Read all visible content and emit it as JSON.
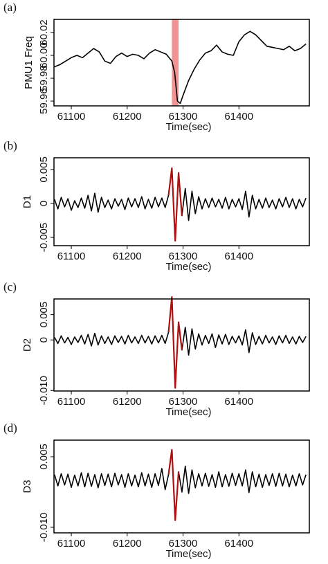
{
  "chart_data": [
    {
      "type": "line",
      "panel_label": "(a)",
      "ylabel": "PMU1 Freq",
      "xlabel": "Time(sec)",
      "xlim": [
        61069,
        61526
      ],
      "ylim": [
        59.9558,
        60.0315
      ],
      "xticks": [
        61100,
        61200,
        61300,
        61400
      ],
      "yticks": [
        60.02,
        {
          "value": 60,
          "label": "60.00"
        },
        59.98,
        59.96
      ],
      "highlight": {
        "x": [
          61280,
          61292
        ],
        "color": "#f08080"
      },
      "x": [
        61070,
        61080,
        61090,
        61100,
        61110,
        61120,
        61130,
        61140,
        61150,
        61160,
        61170,
        61180,
        61190,
        61200,
        61210,
        61220,
        61230,
        61240,
        61250,
        61260,
        61270,
        61280,
        61285,
        61290,
        61295,
        61300,
        61310,
        61320,
        61330,
        61340,
        61350,
        61360,
        61370,
        61380,
        61390,
        61400,
        61410,
        61420,
        61430,
        61440,
        61450,
        61460,
        61470,
        61480,
        61490,
        61500,
        61510,
        61520
      ],
      "series": [
        {
          "name": "PMU1 Freq",
          "color": "#000000",
          "values": [
            59.99,
            59.992,
            59.995,
            59.998,
            60.0,
            59.998,
            60.002,
            60.006,
            60.003,
            59.995,
            59.993,
            59.999,
            60.002,
            59.999,
            60.001,
            60.0,
            59.997,
            60.002,
            60.005,
            60.003,
            60.001,
            59.995,
            59.985,
            59.96,
            59.958,
            59.965,
            59.978,
            59.988,
            59.996,
            60.002,
            60.004,
            60.009,
            60.003,
            60.001,
            60.0,
            60.012,
            60.018,
            60.021,
            60.018,
            60.013,
            60.008,
            60.007,
            60.006,
            60.005,
            60.008,
            60.004,
            60.006,
            60.01
          ]
        }
      ]
    },
    {
      "type": "line",
      "panel_label": "(b)",
      "ylabel": "D1",
      "xlabel": "Time(sec)",
      "xlim": [
        61069,
        61526
      ],
      "ylim": [
        -0.00622,
        0.00673
      ],
      "xticks": [
        61100,
        61200,
        61300,
        61400
      ],
      "yticks": [
        0.005,
        0,
        -0.005
      ],
      "x": [
        61070,
        61076,
        61082,
        61088,
        61094,
        61100,
        61106,
        61112,
        61118,
        61124,
        61130,
        61136,
        61142,
        61148,
        61154,
        61160,
        61166,
        61172,
        61178,
        61184,
        61190,
        61196,
        61202,
        61208,
        61214,
        61220,
        61226,
        61232,
        61238,
        61244,
        61250,
        61256,
        61262,
        61268,
        61274,
        61280,
        61286,
        61292,
        61298,
        61304,
        61310,
        61316,
        61322,
        61328,
        61334,
        61340,
        61346,
        61352,
        61358,
        61364,
        61370,
        61376,
        61382,
        61388,
        61394,
        61400,
        61406,
        61412,
        61418,
        61424,
        61430,
        61436,
        61442,
        61448,
        61454,
        61460,
        61466,
        61472,
        61478,
        61484,
        61490,
        61496,
        61502,
        61508,
        61514,
        61520
      ],
      "series": [
        {
          "name": "D1",
          "color": "#000000",
          "values": [
            0.0006,
            -0.0008,
            0.0009,
            -0.0005,
            0.0007,
            -0.001,
            0.0004,
            -0.0006,
            0.0008,
            -0.0007,
            0.0012,
            -0.0011,
            0.0015,
            -0.0013,
            0.0009,
            -0.0006,
            0.0005,
            -0.0008,
            0.0007,
            -0.0004,
            0.0006,
            -0.0009,
            0.0008,
            -0.0005,
            0.0007,
            -0.0006,
            0.001,
            -0.0008,
            0.0006,
            -0.0007,
            0.0009,
            -0.0005,
            0.0008,
            -0.0006,
            0.0012,
            0.0052,
            -0.0055,
            0.0045,
            -0.0018,
            0.0022,
            -0.0025,
            0.0018,
            -0.0015,
            0.001,
            -0.0008,
            0.0007,
            -0.0006,
            0.0008,
            -0.0005,
            0.0006,
            -0.0007,
            0.0009,
            -0.0008,
            0.0006,
            -0.0005,
            0.0007,
            -0.0009,
            0.0018,
            -0.002,
            0.0012,
            -0.0008,
            0.0006,
            -0.0007,
            0.0008,
            -0.0006,
            0.0005,
            -0.0008,
            0.0007,
            -0.0005,
            0.0009,
            -0.0006,
            0.0007,
            -0.0008,
            0.0006,
            -0.0005,
            0.0008
          ]
        },
        {
          "name": "D1 event",
          "color": "#b01010",
          "values": [
            null,
            null,
            null,
            null,
            null,
            null,
            null,
            null,
            null,
            null,
            null,
            null,
            null,
            null,
            null,
            null,
            null,
            null,
            null,
            null,
            null,
            null,
            null,
            null,
            null,
            null,
            null,
            null,
            null,
            null,
            null,
            null,
            null,
            null,
            0.0012,
            0.0052,
            -0.0055,
            0.0045,
            -0.0018,
            null,
            null,
            null,
            null,
            null,
            null,
            null,
            null,
            null,
            null,
            null,
            null,
            null,
            null,
            null,
            null,
            null,
            null,
            null,
            null,
            null,
            null,
            null,
            null,
            null,
            null,
            null,
            null,
            null,
            null,
            null,
            null,
            null,
            null,
            null,
            null,
            null
          ]
        }
      ]
    },
    {
      "type": "line",
      "panel_label": "(c)",
      "ylabel": "D2",
      "xlabel": "Time(sec)",
      "xlim": [
        61069,
        61526
      ],
      "ylim": [
        -0.0101,
        0.0081
      ],
      "xticks": [
        61100,
        61200,
        61300,
        61400
      ],
      "yticks": [
        0.005,
        0,
        {
          "value": -0.01,
          "label": "-0.010"
        }
      ],
      "x": [
        61070,
        61076,
        61082,
        61088,
        61094,
        61100,
        61106,
        61112,
        61118,
        61124,
        61130,
        61136,
        61142,
        61148,
        61154,
        61160,
        61166,
        61172,
        61178,
        61184,
        61190,
        61196,
        61202,
        61208,
        61214,
        61220,
        61226,
        61232,
        61238,
        61244,
        61250,
        61256,
        61262,
        61268,
        61274,
        61280,
        61286,
        61292,
        61298,
        61304,
        61310,
        61316,
        61322,
        61328,
        61334,
        61340,
        61346,
        61352,
        61358,
        61364,
        61370,
        61376,
        61382,
        61388,
        61394,
        61400,
        61406,
        61412,
        61418,
        61424,
        61430,
        61436,
        61442,
        61448,
        61454,
        61460,
        61466,
        61472,
        61478,
        61484,
        61490,
        61496,
        61502,
        61508,
        61514,
        61520
      ],
      "series": [
        {
          "name": "D2",
          "color": "#000000",
          "values": [
            0.0005,
            -0.0007,
            0.0008,
            -0.0006,
            0.0005,
            -0.0009,
            0.0006,
            -0.0005,
            0.0009,
            -0.0008,
            0.0011,
            -0.0012,
            0.0013,
            -0.001,
            0.0008,
            -0.0007,
            0.0006,
            -0.0009,
            0.0008,
            -0.0005,
            0.0007,
            -0.0008,
            0.0009,
            -0.0006,
            0.0006,
            -0.0007,
            0.0009,
            -0.0006,
            0.0007,
            -0.0008,
            0.0008,
            -0.0006,
            0.0009,
            -0.0007,
            0.0015,
            0.0085,
            -0.0095,
            0.0035,
            -0.002,
            0.0025,
            -0.003,
            0.0022,
            -0.0018,
            0.0012,
            -0.001,
            0.0009,
            -0.0007,
            0.0012,
            -0.0015,
            0.001,
            -0.0008,
            0.0011,
            -0.0009,
            0.0007,
            -0.0006,
            0.0008,
            -0.001,
            0.002,
            -0.0025,
            0.0014,
            -0.0009,
            0.0007,
            -0.0008,
            0.0009,
            -0.0006,
            0.0006,
            -0.0009,
            0.0008,
            -0.0006,
            0.0009,
            -0.0007,
            0.0006,
            -0.0008,
            0.0007,
            -0.0005,
            0.0007
          ]
        },
        {
          "name": "D2 event",
          "color": "#b01010",
          "values": [
            null,
            null,
            null,
            null,
            null,
            null,
            null,
            null,
            null,
            null,
            null,
            null,
            null,
            null,
            null,
            null,
            null,
            null,
            null,
            null,
            null,
            null,
            null,
            null,
            null,
            null,
            null,
            null,
            null,
            null,
            null,
            null,
            null,
            null,
            0.0015,
            0.0085,
            -0.0095,
            0.0035,
            -0.002,
            null,
            null,
            null,
            null,
            null,
            null,
            null,
            null,
            null,
            null,
            null,
            null,
            null,
            null,
            null,
            null,
            null,
            null,
            null,
            null,
            null,
            null,
            null,
            null,
            null,
            null,
            null,
            null,
            null,
            null,
            null,
            null,
            null,
            null,
            null,
            null,
            null
          ]
        }
      ]
    },
    {
      "type": "line",
      "panel_label": "(d)",
      "ylabel": "D3",
      "xlabel": "Time(sec)",
      "xlim": [
        61069,
        61526
      ],
      "ylim": [
        -0.01118,
        0.00853
      ],
      "xticks": [
        61100,
        61200,
        61300,
        61400
      ],
      "yticks": [
        0.005,
        {
          "value": -0.01,
          "label": "-0.010"
        }
      ],
      "x": [
        61070,
        61076,
        61082,
        61088,
        61094,
        61100,
        61106,
        61112,
        61118,
        61124,
        61130,
        61136,
        61142,
        61148,
        61154,
        61160,
        61166,
        61172,
        61178,
        61184,
        61190,
        61196,
        61202,
        61208,
        61214,
        61220,
        61226,
        61232,
        61238,
        61244,
        61250,
        61256,
        61262,
        61268,
        61274,
        61280,
        61286,
        61292,
        61298,
        61304,
        61310,
        61316,
        61322,
        61328,
        61334,
        61340,
        61346,
        61352,
        61358,
        61364,
        61370,
        61376,
        61382,
        61388,
        61394,
        61400,
        61406,
        61412,
        61418,
        61424,
        61430,
        61436,
        61442,
        61448,
        61454,
        61460,
        61466,
        61472,
        61478,
        61484,
        61490,
        61496,
        61502,
        61508,
        61514,
        61520
      ],
      "series": [
        {
          "name": "D3",
          "color": "#000000",
          "values": [
            0.0012,
            -0.0012,
            0.0014,
            -0.001,
            0.0013,
            -0.0015,
            0.0011,
            -0.0012,
            0.0016,
            -0.0014,
            0.0015,
            -0.0013,
            0.0012,
            -0.0016,
            0.0014,
            -0.0011,
            0.0013,
            -0.0014,
            0.0015,
            -0.001,
            0.0012,
            -0.0015,
            0.0014,
            -0.0012,
            0.0011,
            -0.0014,
            0.0016,
            -0.0012,
            0.0013,
            -0.0015,
            0.0014,
            -0.0011,
            0.0025,
            -0.002,
            0.0012,
            0.0065,
            -0.0085,
            0.0018,
            -0.0025,
            0.003,
            -0.0028,
            0.0022,
            -0.0016,
            0.0014,
            -0.0012,
            0.0015,
            -0.0013,
            0.0012,
            -0.0015,
            0.0018,
            -0.0014,
            0.0012,
            -0.0013,
            0.0015,
            -0.0011,
            0.0014,
            -0.0012,
            0.0022,
            -0.0026,
            0.0018,
            -0.0014,
            0.0013,
            -0.0015,
            0.0012,
            -0.0011,
            0.0014,
            -0.0013,
            0.0015,
            -0.0012,
            0.0013,
            -0.0014,
            0.0011,
            -0.0012,
            0.0014,
            -0.001,
            0.0012
          ]
        },
        {
          "name": "D3 event",
          "color": "#b01010",
          "values": [
            null,
            null,
            null,
            null,
            null,
            null,
            null,
            null,
            null,
            null,
            null,
            null,
            null,
            null,
            null,
            null,
            null,
            null,
            null,
            null,
            null,
            null,
            null,
            null,
            null,
            null,
            null,
            null,
            null,
            null,
            null,
            null,
            null,
            null,
            0.0012,
            0.0065,
            -0.0085,
            0.0018,
            null,
            null,
            null,
            null,
            null,
            null,
            null,
            null,
            null,
            null,
            null,
            null,
            null,
            null,
            null,
            null,
            null,
            null,
            null,
            null,
            null,
            null,
            null,
            null,
            null,
            null,
            null,
            null,
            null,
            null,
            null,
            null,
            null,
            null,
            null,
            null,
            null,
            null
          ]
        }
      ]
    }
  ]
}
